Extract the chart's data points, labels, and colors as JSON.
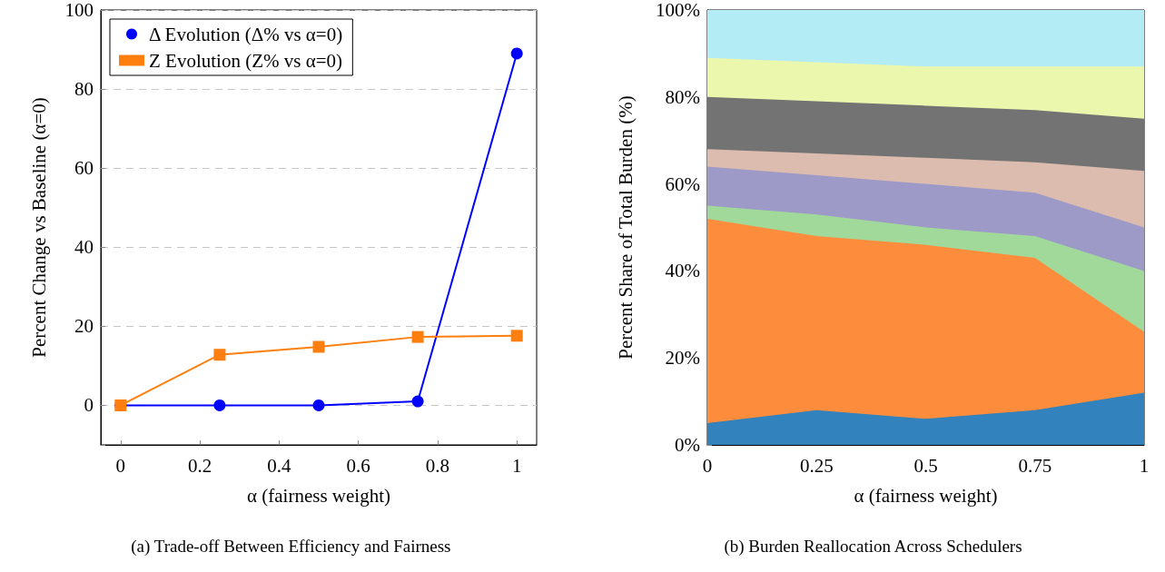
{
  "chart_data": [
    {
      "type": "line",
      "x": [
        0,
        0.25,
        0.5,
        0.75,
        1
      ],
      "xlabel": "α (fairness weight)",
      "ylabel": "Percent Change vs Baseline (α=0)",
      "series": [
        {
          "name": "Δ Evolution (Δ% vs α=0)",
          "color": "#0000ff",
          "marker": "circle",
          "values": [
            0,
            0,
            0,
            1,
            89
          ]
        },
        {
          "name": "Z Evolution (Z% vs α=0)",
          "color": "#ff7f0e",
          "marker": "square",
          "values": [
            0,
            12.8,
            14.8,
            17.3,
            17.6
          ]
        }
      ],
      "xlim": [
        -0.05,
        1.05
      ],
      "xticks": [
        0,
        0.2,
        0.4,
        0.6,
        0.8,
        1
      ],
      "ylim": [
        -10,
        100
      ],
      "yticks": [
        {
          "value": -10,
          "label": null
        },
        0,
        20,
        40,
        60,
        80,
        100
      ],
      "grid": "y",
      "legend": "top left",
      "line_style": "solid",
      "annotations": [
        "(a) Trade-off Between Efficiency and Fairness"
      ]
    },
    {
      "type": "area",
      "stacked": true,
      "x": [
        0,
        0.25,
        0.5,
        0.75,
        1
      ],
      "xlabel": "α (fairness weight)",
      "ylabel": "Percent Share of Total Burden (%)",
      "series": [
        {
          "color": "#3182bd",
          "values": [
            5,
            8,
            6,
            8,
            12
          ]
        },
        {
          "color": "#fd8d3c",
          "values": [
            47,
            40,
            40,
            35,
            14
          ]
        },
        {
          "color": "#a1d99b",
          "values": [
            3,
            5,
            4,
            5,
            14
          ]
        },
        {
          "color": "#9e9ac8",
          "values": [
            9,
            9,
            10,
            10,
            10
          ]
        },
        {
          "color": "#dcbcae",
          "values": [
            4,
            5,
            6,
            7,
            13
          ]
        },
        {
          "color": "#737373",
          "values": [
            12,
            12,
            12,
            12,
            12
          ]
        },
        {
          "color": "#ecf7ae",
          "values": [
            9,
            9,
            9,
            10,
            12
          ]
        },
        {
          "color": "#b3ecf4",
          "values": [
            11,
            12,
            13,
            13,
            13
          ]
        }
      ],
      "xlim": [
        0,
        1
      ],
      "xticks": [
        0,
        0.25,
        0.5,
        0.75,
        1
      ],
      "ylim": [
        0,
        100
      ],
      "yticks": [
        {
          "value": 0,
          "label": "0%"
        },
        {
          "value": 20,
          "label": "20%"
        },
        {
          "value": 40,
          "label": "40%"
        },
        {
          "value": 60,
          "label": "60%"
        },
        {
          "value": 80,
          "label": "80%"
        },
        {
          "value": 100,
          "label": "100%"
        }
      ],
      "grid": false,
      "legend": false,
      "annotations": [
        "(b) Burden Reallocation Across Schedulers"
      ]
    }
  ]
}
